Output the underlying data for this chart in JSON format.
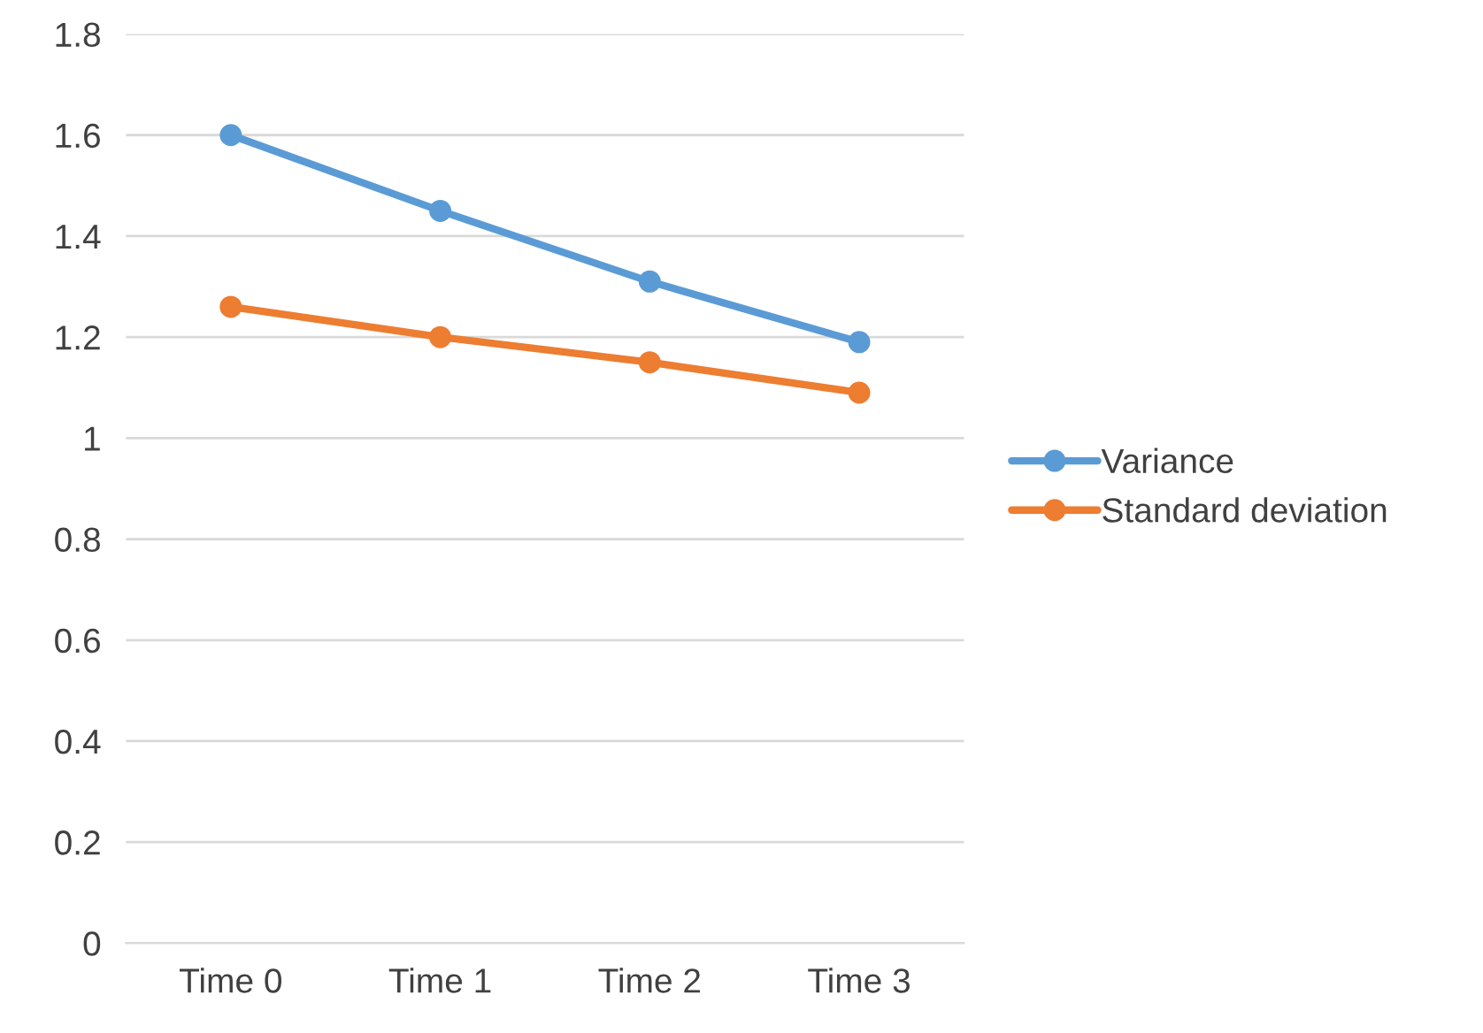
{
  "chart_data": {
    "type": "line",
    "categories": [
      "Time 0",
      "Time 1",
      "Time 2",
      "Time 3"
    ],
    "series": [
      {
        "name": "Variance",
        "color": "#5b9bd5",
        "values": [
          1.6,
          1.45,
          1.31,
          1.19
        ]
      },
      {
        "name": "Standard deviation",
        "color": "#ed7d31",
        "values": [
          1.26,
          1.2,
          1.15,
          1.09
        ]
      }
    ],
    "ylim": [
      0,
      1.8
    ],
    "yticks": [
      0,
      0.2,
      0.4,
      0.6,
      0.8,
      1,
      1.2,
      1.4,
      1.6,
      1.8
    ],
    "grid": "y",
    "legend": "right",
    "marker": "circle",
    "line_style": "solid"
  }
}
